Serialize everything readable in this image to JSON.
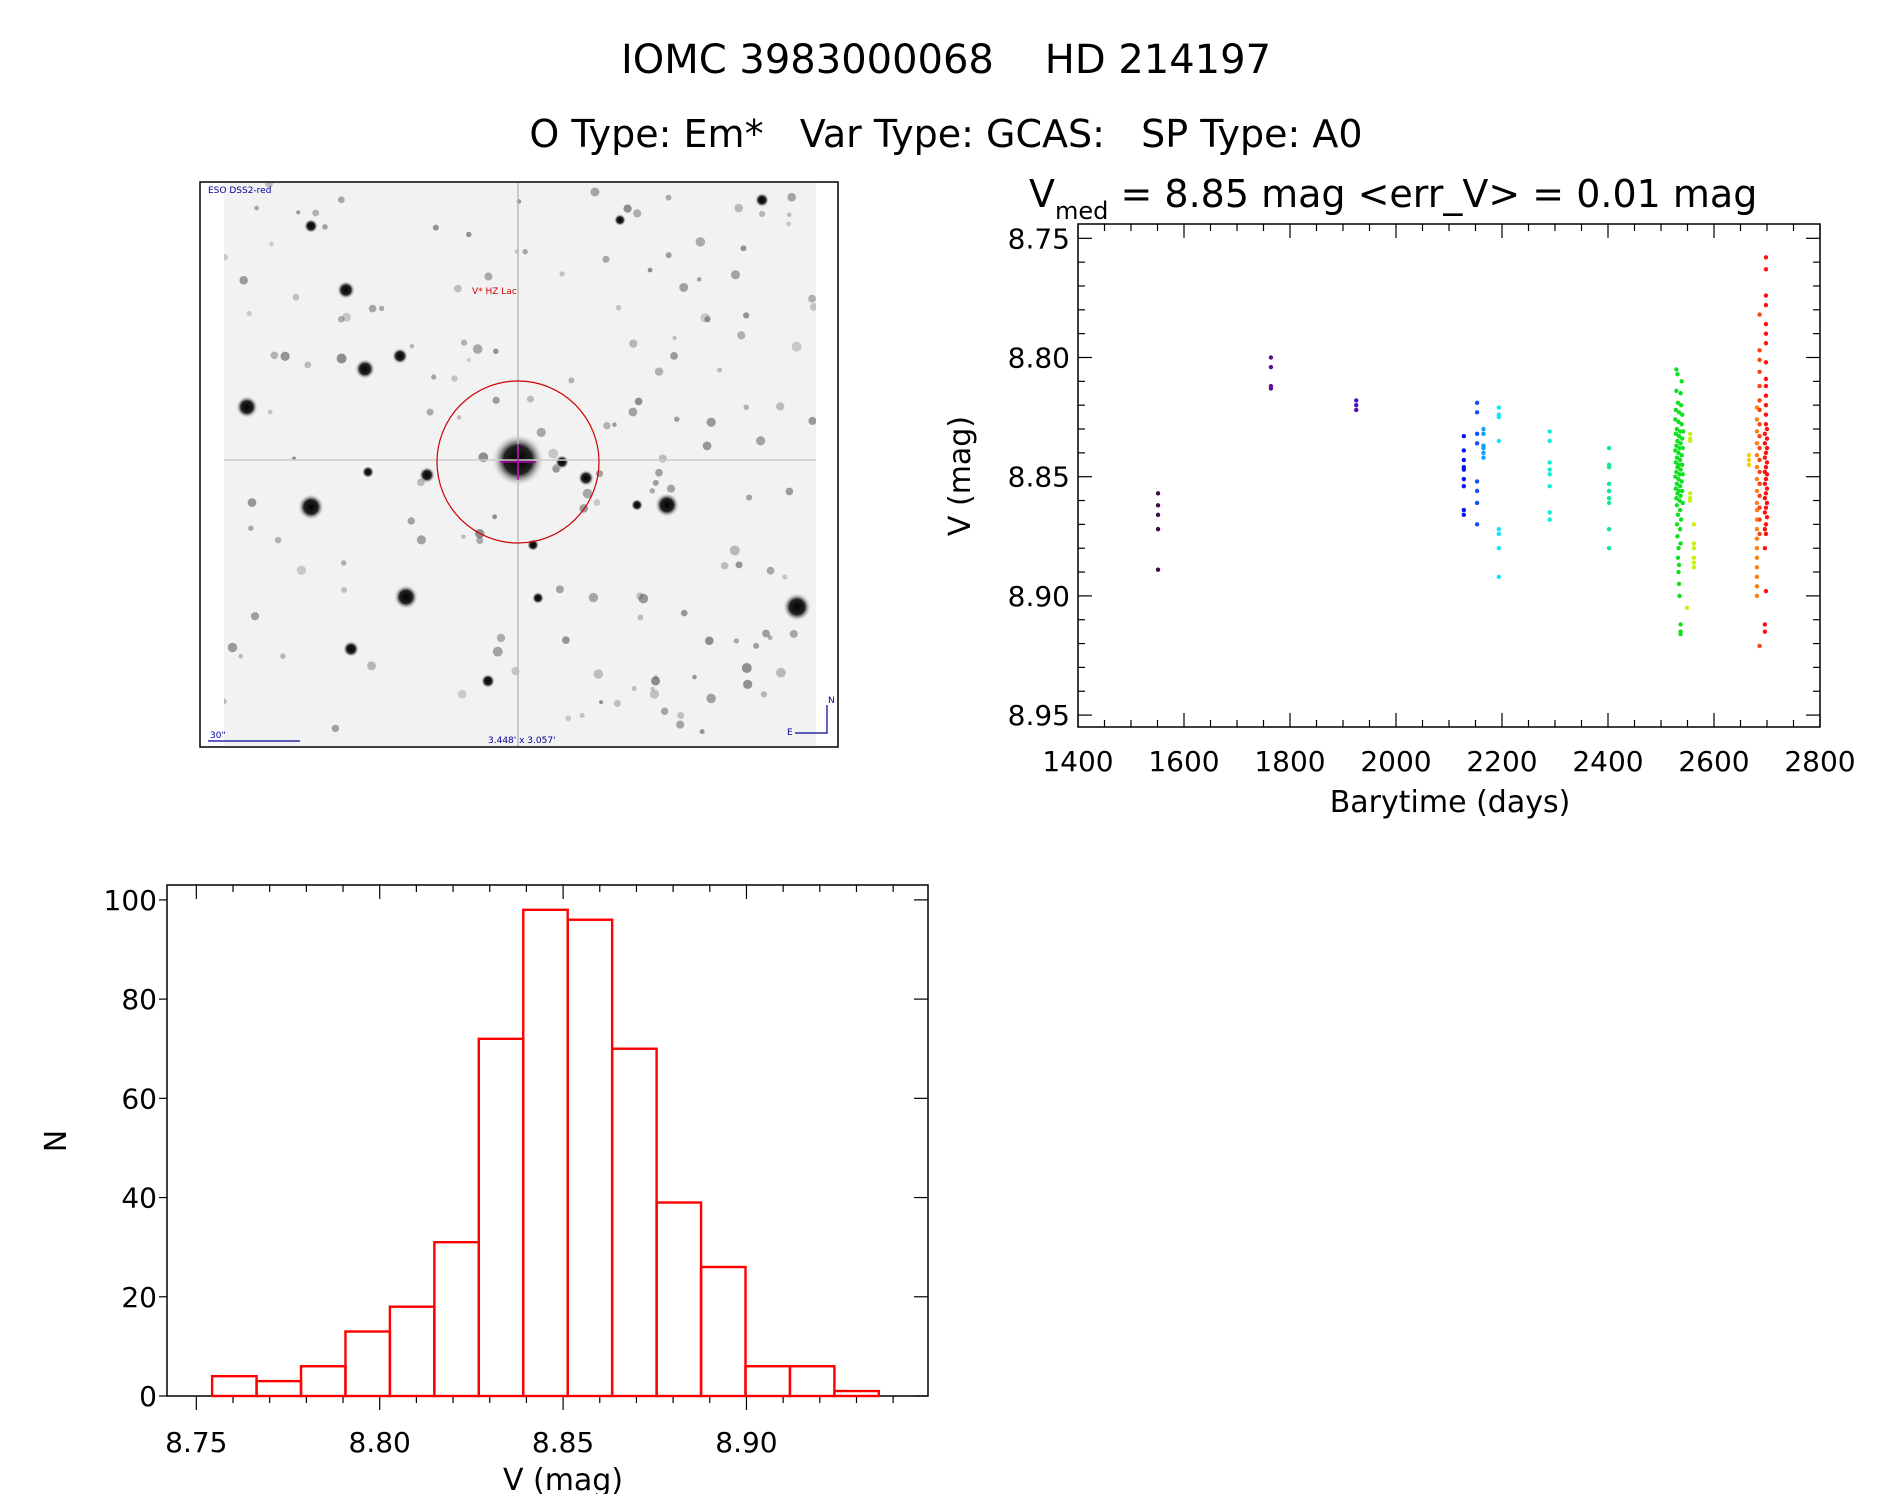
{
  "header": {
    "title": "IOMC 3983000068    HD 214197",
    "subtitle": "O Type: Em*   Var Type: GCAS:   SP Type: A0"
  },
  "finder_image": {
    "survey_label": "ESO DSS2-red",
    "target_label": "V* HZ Lac",
    "scale_label": "30\"",
    "fov_label": "3.448' x 3.057'",
    "north_label": "N",
    "east_label": "E",
    "circle_color": "#cc0000",
    "label_color": "#000099"
  },
  "chart_data": [
    {
      "type": "scatter",
      "title_prefix": "V",
      "title_sub": "med",
      "title_rest": " = 8.85 mag <err_V> = 0.01 mag",
      "xlabel": "Barytime (days)",
      "ylabel": "V (mag)",
      "xlim": [
        1400,
        2800
      ],
      "ylim": [
        8.744,
        8.955
      ],
      "y_inverted": true,
      "xticks": [
        "1400",
        "1600",
        "1800",
        "2000",
        "2200",
        "2400",
        "2600",
        "2800"
      ],
      "yticks": [
        "8.75",
        "8.80",
        "8.85",
        "8.90",
        "8.95"
      ],
      "series": [
        {
          "color": "#3a0a4a",
          "points": [
            [
              1551,
              8.857
            ],
            [
              1551,
              8.862
            ],
            [
              1551,
              8.866
            ],
            [
              1551,
              8.872
            ],
            [
              1551,
              8.889
            ]
          ]
        },
        {
          "color": "#5a1090",
          "points": [
            [
              1764,
              8.8
            ],
            [
              1764,
              8.804
            ],
            [
              1764,
              8.812
            ],
            [
              1764,
              8.813
            ]
          ]
        },
        {
          "color": "#5010c0",
          "points": [
            [
              1925,
              8.818
            ],
            [
              1925,
              8.82
            ],
            [
              1925,
              8.822
            ]
          ]
        },
        {
          "color": "#0a10f0",
          "points": [
            [
              2128,
              8.833
            ],
            [
              2128,
              8.839
            ],
            [
              2128,
              8.843
            ],
            [
              2128,
              8.846
            ],
            [
              2128,
              8.847
            ],
            [
              2128,
              8.851
            ],
            [
              2128,
              8.854
            ],
            [
              2128,
              8.864
            ],
            [
              2128,
              8.866
            ]
          ]
        },
        {
          "color": "#1050ff",
          "points": [
            [
              2153,
              8.819
            ],
            [
              2153,
              8.823
            ],
            [
              2153,
              8.832
            ],
            [
              2153,
              8.836
            ],
            [
              2153,
              8.852
            ],
            [
              2153,
              8.856
            ],
            [
              2153,
              8.861
            ],
            [
              2153,
              8.87
            ]
          ]
        },
        {
          "color": "#10a0ff",
          "points": [
            [
              2165,
              8.83
            ],
            [
              2165,
              8.832
            ],
            [
              2165,
              8.837
            ],
            [
              2165,
              8.838
            ],
            [
              2165,
              8.84
            ],
            [
              2165,
              8.842
            ]
          ]
        },
        {
          "color": "#10e8f8",
          "points": [
            [
              2194,
              8.821
            ],
            [
              2194,
              8.824
            ],
            [
              2194,
              8.825
            ],
            [
              2194,
              8.835
            ],
            [
              2194,
              8.872
            ],
            [
              2194,
              8.874
            ],
            [
              2194,
              8.88
            ],
            [
              2194,
              8.892
            ]
          ]
        },
        {
          "color": "#10f0d0",
          "points": [
            [
              2290,
              8.831
            ],
            [
              2290,
              8.835
            ],
            [
              2290,
              8.844
            ],
            [
              2290,
              8.847
            ],
            [
              2290,
              8.849
            ],
            [
              2290,
              8.854
            ],
            [
              2290,
              8.865
            ],
            [
              2290,
              8.868
            ]
          ]
        },
        {
          "color": "#10e890",
          "points": [
            [
              2402,
              8.838
            ],
            [
              2402,
              8.845
            ],
            [
              2402,
              8.846
            ],
            [
              2402,
              8.853
            ],
            [
              2402,
              8.856
            ],
            [
              2402,
              8.859
            ],
            [
              2402,
              8.861
            ],
            [
              2402,
              8.872
            ],
            [
              2402,
              8.88
            ]
          ]
        },
        {
          "color": "#10e020",
          "points": [
            [
              2529,
              8.805
            ],
            [
              2531,
              8.807
            ],
            [
              2539,
              8.81
            ],
            [
              2529,
              8.814
            ],
            [
              2537,
              8.815
            ],
            [
              2532,
              8.819
            ],
            [
              2538,
              8.82
            ],
            [
              2528,
              8.822
            ],
            [
              2534,
              8.823
            ],
            [
              2540,
              8.824
            ],
            [
              2527,
              8.826
            ],
            [
              2533,
              8.827
            ],
            [
              2539,
              8.828
            ],
            [
              2530,
              8.83
            ],
            [
              2536,
              8.831
            ],
            [
              2542,
              8.831
            ],
            [
              2528,
              8.832
            ],
            [
              2534,
              8.833
            ],
            [
              2540,
              8.834
            ],
            [
              2531,
              8.835
            ],
            [
              2537,
              8.836
            ],
            [
              2529,
              8.837
            ],
            [
              2535,
              8.838
            ],
            [
              2541,
              8.838
            ],
            [
              2527,
              8.839
            ],
            [
              2533,
              8.84
            ],
            [
              2539,
              8.841
            ],
            [
              2530,
              8.842
            ],
            [
              2536,
              8.843
            ],
            [
              2528,
              8.844
            ],
            [
              2534,
              8.845
            ],
            [
              2540,
              8.845
            ],
            [
              2531,
              8.846
            ],
            [
              2537,
              8.847
            ],
            [
              2529,
              8.848
            ],
            [
              2535,
              8.849
            ],
            [
              2541,
              8.849
            ],
            [
              2527,
              8.85
            ],
            [
              2533,
              8.851
            ],
            [
              2539,
              8.852
            ],
            [
              2530,
              8.853
            ],
            [
              2536,
              8.854
            ],
            [
              2528,
              8.855
            ],
            [
              2534,
              8.856
            ],
            [
              2540,
              8.856
            ],
            [
              2531,
              8.857
            ],
            [
              2537,
              8.858
            ],
            [
              2529,
              8.859
            ],
            [
              2535,
              8.86
            ],
            [
              2541,
              8.861
            ],
            [
              2530,
              8.862
            ],
            [
              2536,
              8.864
            ],
            [
              2532,
              8.866
            ],
            [
              2538,
              8.868
            ],
            [
              2530,
              8.87
            ],
            [
              2536,
              8.872
            ],
            [
              2531,
              8.875
            ],
            [
              2537,
              8.878
            ],
            [
              2533,
              8.88
            ],
            [
              2532,
              8.884
            ],
            [
              2534,
              8.887
            ],
            [
              2533,
              8.89
            ],
            [
              2534,
              8.895
            ],
            [
              2535,
              8.9
            ],
            [
              2537,
              8.912
            ],
            [
              2537,
              8.915
            ],
            [
              2537,
              8.916
            ]
          ]
        },
        {
          "color": "#c8f010",
          "points": [
            [
              2555,
              8.832
            ],
            [
              2555,
              8.834
            ],
            [
              2555,
              8.835
            ],
            [
              2555,
              8.857
            ],
            [
              2555,
              8.859
            ],
            [
              2555,
              8.86
            ],
            [
              2562,
              8.87
            ],
            [
              2562,
              8.878
            ],
            [
              2562,
              8.88
            ],
            [
              2562,
              8.884
            ],
            [
              2562,
              8.886
            ],
            [
              2562,
              8.888
            ],
            [
              2549,
              8.905
            ]
          ]
        },
        {
          "color": "#f8d010",
          "points": [
            [
              2666,
              8.841
            ],
            [
              2666,
              8.843
            ],
            [
              2666,
              8.845
            ]
          ]
        },
        {
          "color": "#ff8010",
          "points": [
            [
              2681,
              8.821
            ],
            [
              2681,
              8.826
            ],
            [
              2681,
              8.831
            ],
            [
              2681,
              8.836
            ],
            [
              2681,
              8.841
            ],
            [
              2681,
              8.846
            ],
            [
              2681,
              8.851
            ],
            [
              2681,
              8.856
            ],
            [
              2681,
              8.861
            ],
            [
              2681,
              8.864
            ],
            [
              2681,
              8.868
            ],
            [
              2681,
              8.872
            ],
            [
              2681,
              8.876
            ],
            [
              2681,
              8.88
            ],
            [
              2681,
              8.884
            ],
            [
              2681,
              8.888
            ],
            [
              2681,
              8.892
            ],
            [
              2681,
              8.896
            ],
            [
              2681,
              8.9
            ]
          ]
        },
        {
          "color": "#ff4010",
          "points": [
            [
              2686,
              8.782
            ],
            [
              2686,
              8.797
            ],
            [
              2686,
              8.801
            ],
            [
              2686,
              8.806
            ],
            [
              2686,
              8.812
            ],
            [
              2686,
              8.818
            ],
            [
              2686,
              8.822
            ],
            [
              2686,
              8.828
            ],
            [
              2686,
              8.833
            ],
            [
              2686,
              8.838
            ],
            [
              2686,
              8.843
            ],
            [
              2686,
              8.848
            ],
            [
              2686,
              8.853
            ],
            [
              2686,
              8.858
            ],
            [
              2686,
              8.863
            ],
            [
              2686,
              8.868
            ],
            [
              2686,
              8.874
            ],
            [
              2686,
              8.921
            ]
          ]
        },
        {
          "color": "#ff1010",
          "points": [
            [
              2698,
              8.758
            ],
            [
              2698,
              8.763
            ],
            [
              2698,
              8.774
            ],
            [
              2698,
              8.778
            ],
            [
              2698,
              8.786
            ],
            [
              2698,
              8.79
            ],
            [
              2698,
              8.794
            ],
            [
              2698,
              8.802
            ],
            [
              2698,
              8.809
            ],
            [
              2698,
              8.812
            ],
            [
              2698,
              8.816
            ],
            [
              2698,
              8.82
            ],
            [
              2698,
              8.824
            ],
            [
              2698,
              8.828
            ],
            [
              2700,
              8.83
            ],
            [
              2696,
              8.832
            ],
            [
              2700,
              8.834
            ],
            [
              2696,
              8.836
            ],
            [
              2700,
              8.838
            ],
            [
              2698,
              8.84
            ],
            [
              2696,
              8.842
            ],
            [
              2700,
              8.844
            ],
            [
              2698,
              8.846
            ],
            [
              2696,
              8.848
            ],
            [
              2700,
              8.849
            ],
            [
              2698,
              8.851
            ],
            [
              2696,
              8.853
            ],
            [
              2700,
              8.855
            ],
            [
              2698,
              8.857
            ],
            [
              2696,
              8.859
            ],
            [
              2700,
              8.861
            ],
            [
              2698,
              8.863
            ],
            [
              2696,
              8.865
            ],
            [
              2700,
              8.867
            ],
            [
              2698,
              8.87
            ],
            [
              2696,
              8.872
            ],
            [
              2698,
              8.874
            ],
            [
              2696,
              8.88
            ],
            [
              2698,
              8.898
            ],
            [
              2696,
              8.912
            ],
            [
              2696,
              8.915
            ]
          ]
        }
      ]
    },
    {
      "type": "bar",
      "subtype": "histogram",
      "xlabel": "V (mag)",
      "ylabel": "N",
      "xlim": [
        8.742,
        8.9495
      ],
      "ylim": [
        0,
        103
      ],
      "xticks": [
        "8.75",
        "8.80",
        "8.85",
        "8.90"
      ],
      "yticks": [
        "0",
        "20",
        "40",
        "60",
        "80",
        "100"
      ],
      "bin_start": 8.7543,
      "bin_width": 0.01212,
      "values": [
        4,
        3,
        6,
        13,
        18,
        31,
        72,
        98,
        96,
        70,
        39,
        26,
        6,
        6,
        1
      ],
      "color": "#ff0000"
    }
  ]
}
